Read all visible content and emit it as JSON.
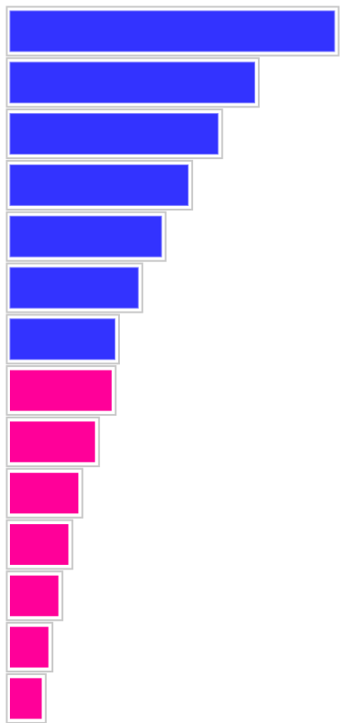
{
  "chart_data": {
    "type": "bar",
    "orientation": "horizontal",
    "title": "",
    "xlabel": "",
    "ylabel": "",
    "grid": false,
    "legend": "none",
    "xlim": [
      0,
      100
    ],
    "bars": [
      {
        "value": 100,
        "group": "blue"
      },
      {
        "value": 76,
        "group": "blue"
      },
      {
        "value": 65,
        "group": "blue"
      },
      {
        "value": 56,
        "group": "blue"
      },
      {
        "value": 48,
        "group": "blue"
      },
      {
        "value": 41,
        "group": "blue"
      },
      {
        "value": 34,
        "group": "blue"
      },
      {
        "value": 33,
        "group": "pink"
      },
      {
        "value": 28,
        "group": "pink"
      },
      {
        "value": 23,
        "group": "pink"
      },
      {
        "value": 20,
        "group": "pink"
      },
      {
        "value": 17,
        "group": "pink"
      },
      {
        "value": 14,
        "group": "pink"
      },
      {
        "value": 12,
        "group": "pink"
      }
    ],
    "colors": {
      "blue": "#3333ff",
      "pink": "#ff0099",
      "frame": "#c8c8c8",
      "inner_border": "#7f7fff"
    }
  }
}
